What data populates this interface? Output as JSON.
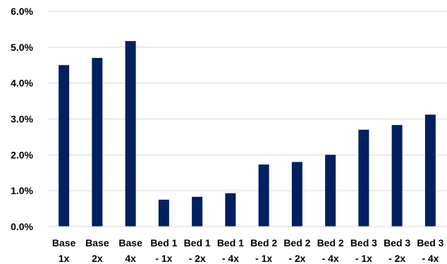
{
  "chart_data": {
    "type": "bar",
    "title": "",
    "xlabel": "",
    "ylabel": "",
    "categories": [
      [
        "Base",
        "1x"
      ],
      [
        "Base",
        "2x"
      ],
      [
        "Base",
        "4x"
      ],
      [
        "Bed 1",
        "- 1x"
      ],
      [
        "Bed 1",
        "- 2x"
      ],
      [
        "Bed 1",
        "- 4x"
      ],
      [
        "Bed 2",
        "- 1x"
      ],
      [
        "Bed 2",
        "- 2x"
      ],
      [
        "Bed 2",
        "- 4x"
      ],
      [
        "Bed 3",
        "- 1x"
      ],
      [
        "Bed 3",
        "- 2x"
      ],
      [
        "Bed 3",
        "- 4x"
      ]
    ],
    "values": [
      4.5,
      4.7,
      5.17,
      0.75,
      0.83,
      0.93,
      1.73,
      1.8,
      2.0,
      2.7,
      2.83,
      3.12
    ],
    "ylim": [
      0,
      6
    ],
    "yticks": [
      "0.0%",
      "1.0%",
      "2.0%",
      "3.0%",
      "4.0%",
      "5.0%",
      "6.0%"
    ],
    "grid": true,
    "legend": "none",
    "bar_color": "#002060",
    "grid_color": "#d9d9d9"
  }
}
